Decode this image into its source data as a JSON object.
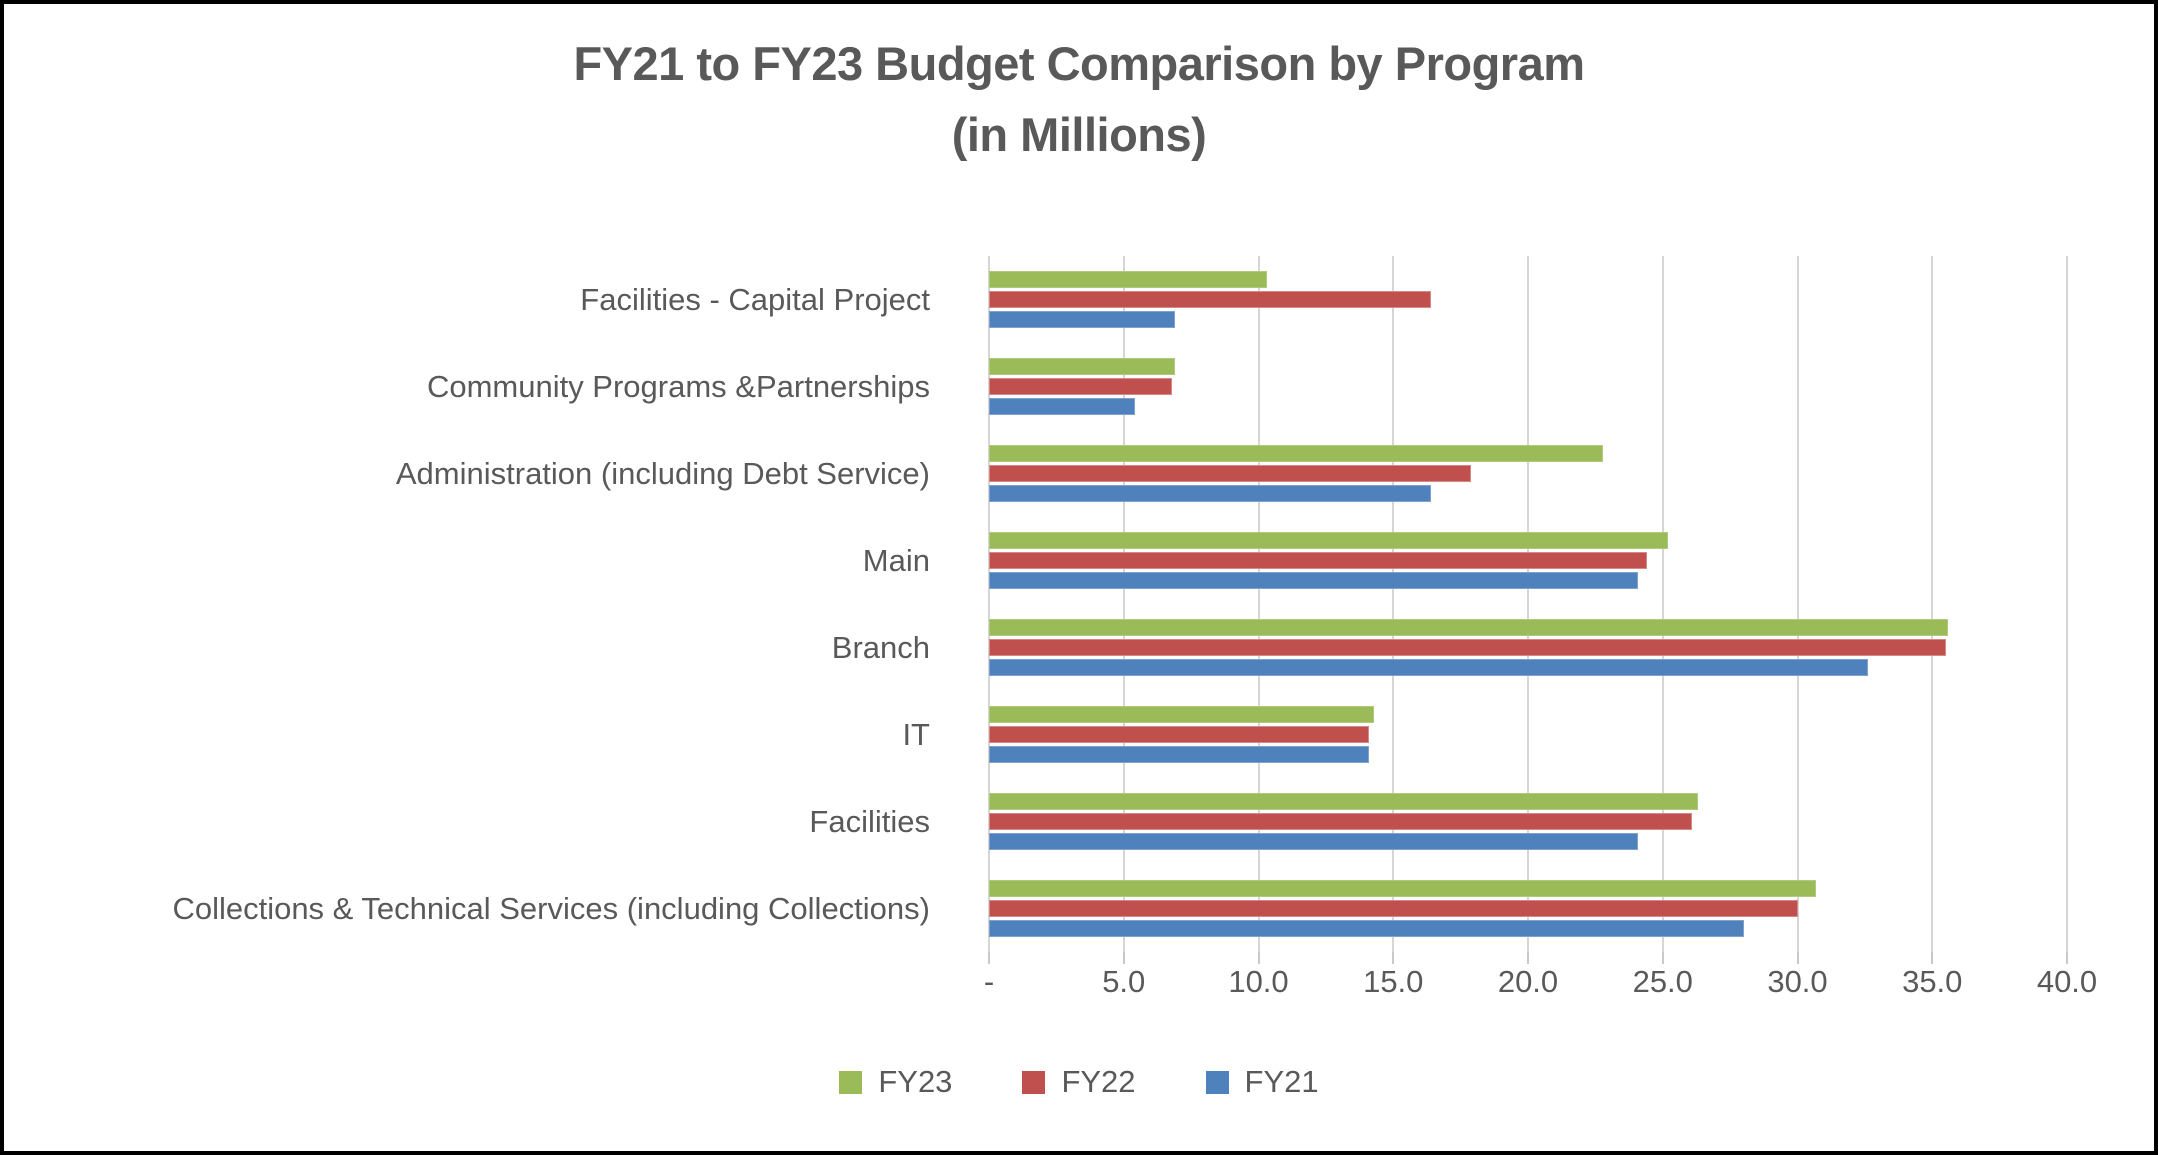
{
  "page": {
    "title_lines": [
      "FY21 to FY23 Budget Comparison by Program",
      "(in Millions)"
    ]
  },
  "colors": {
    "background": "#FFFFFF",
    "frame_border": "#000000",
    "text": "#595959",
    "gridline": "#D6D6D6",
    "fy23_green": "#9BBB59",
    "fy22_red": "#C0504D",
    "fy21_blue": "#4F81BD"
  },
  "chart_data": {
    "type": "bar",
    "orientation": "horizontal",
    "title": "FY21 to FY23 Budget Comparison by Program (in Millions)",
    "categories": [
      "Facilities - Capital Project",
      "Community Programs &Partnerships",
      "Administration (including Debt Service)",
      "Main",
      "Branch",
      "IT",
      "Facilities",
      "Collections & Technical Services (including Collections)"
    ],
    "series": [
      {
        "name": "FY23",
        "color": "#9BBB59",
        "border_color": "#AFC97E",
        "values": [
          10.3,
          6.9,
          22.8,
          25.2,
          35.6,
          14.3,
          26.3,
          30.7
        ]
      },
      {
        "name": "FY22",
        "color": "#C0504D",
        "border_color": "#D38A88",
        "values": [
          16.4,
          6.8,
          17.9,
          24.4,
          35.5,
          14.1,
          26.1,
          30.0
        ]
      },
      {
        "name": "FY21",
        "color": "#4F81BD",
        "border_color": "#7FA1CC",
        "values": [
          6.9,
          5.4,
          16.4,
          24.1,
          32.6,
          14.1,
          24.1,
          28.0
        ]
      }
    ],
    "xlim": [
      0,
      40
    ],
    "xtick_interval": 5,
    "xtick_labels": [
      "-",
      "5.0",
      "10.0",
      "15.0",
      "20.0",
      "25.0",
      "30.0",
      "35.0",
      "40.0"
    ],
    "grid": true,
    "legend_position": "bottom",
    "legend": [
      "FY23",
      "FY22",
      "FY21"
    ]
  }
}
